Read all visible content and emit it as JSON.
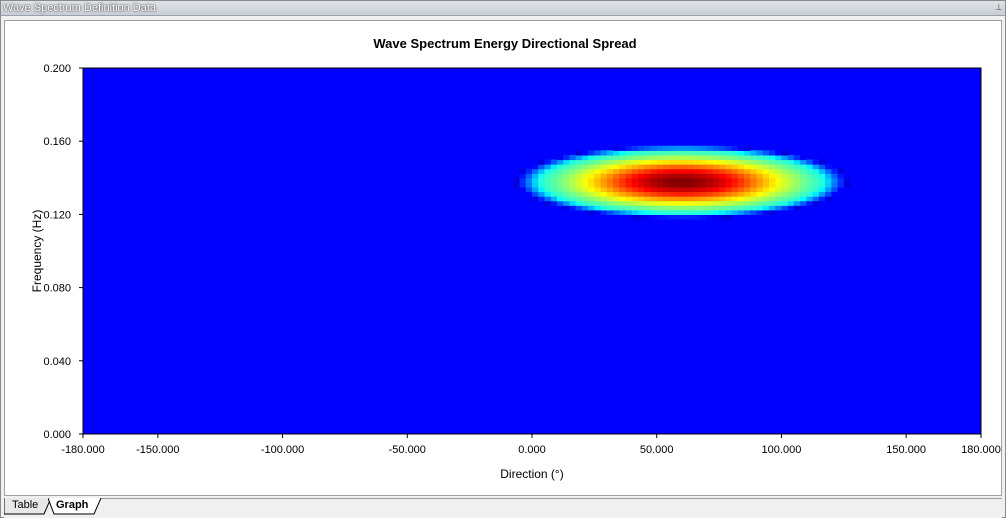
{
  "window": {
    "title": "Wave Spectrum Definition Data",
    "pin_icon": "pin-icon"
  },
  "tabs": [
    {
      "label": "Table",
      "active": false
    },
    {
      "label": "Graph",
      "active": true
    }
  ],
  "chart_data": {
    "type": "heatmap",
    "title": "Wave Spectrum Energy Directional Spread",
    "xlabel": "Direction (°)",
    "ylabel": "Frequency (Hz)",
    "xlim": [
      -180,
      180
    ],
    "ylim": [
      0,
      0.2
    ],
    "xticks": [
      "-180.000",
      "-150.000",
      "-100.000",
      "-50.000",
      "0.000",
      "50.000",
      "100.000",
      "150.000",
      "180.000"
    ],
    "xtick_values": [
      -180,
      -150,
      -100,
      -50,
      0,
      50,
      100,
      150,
      180
    ],
    "yticks": [
      "0.000",
      "0.040",
      "0.080",
      "0.120",
      "0.160",
      "0.200"
    ],
    "ytick_values": [
      0,
      0.04,
      0.08,
      0.12,
      0.16,
      0.2
    ],
    "peak": {
      "direction": 60,
      "frequency": 0.138
    },
    "spread": {
      "direction_halfwidth": 60,
      "frequency_halfwidth": 0.018
    },
    "colormap": [
      "#0000ff",
      "#00ffff",
      "#00ff00",
      "#ffff00",
      "#ff0000"
    ],
    "background_color": "#0000ff"
  }
}
